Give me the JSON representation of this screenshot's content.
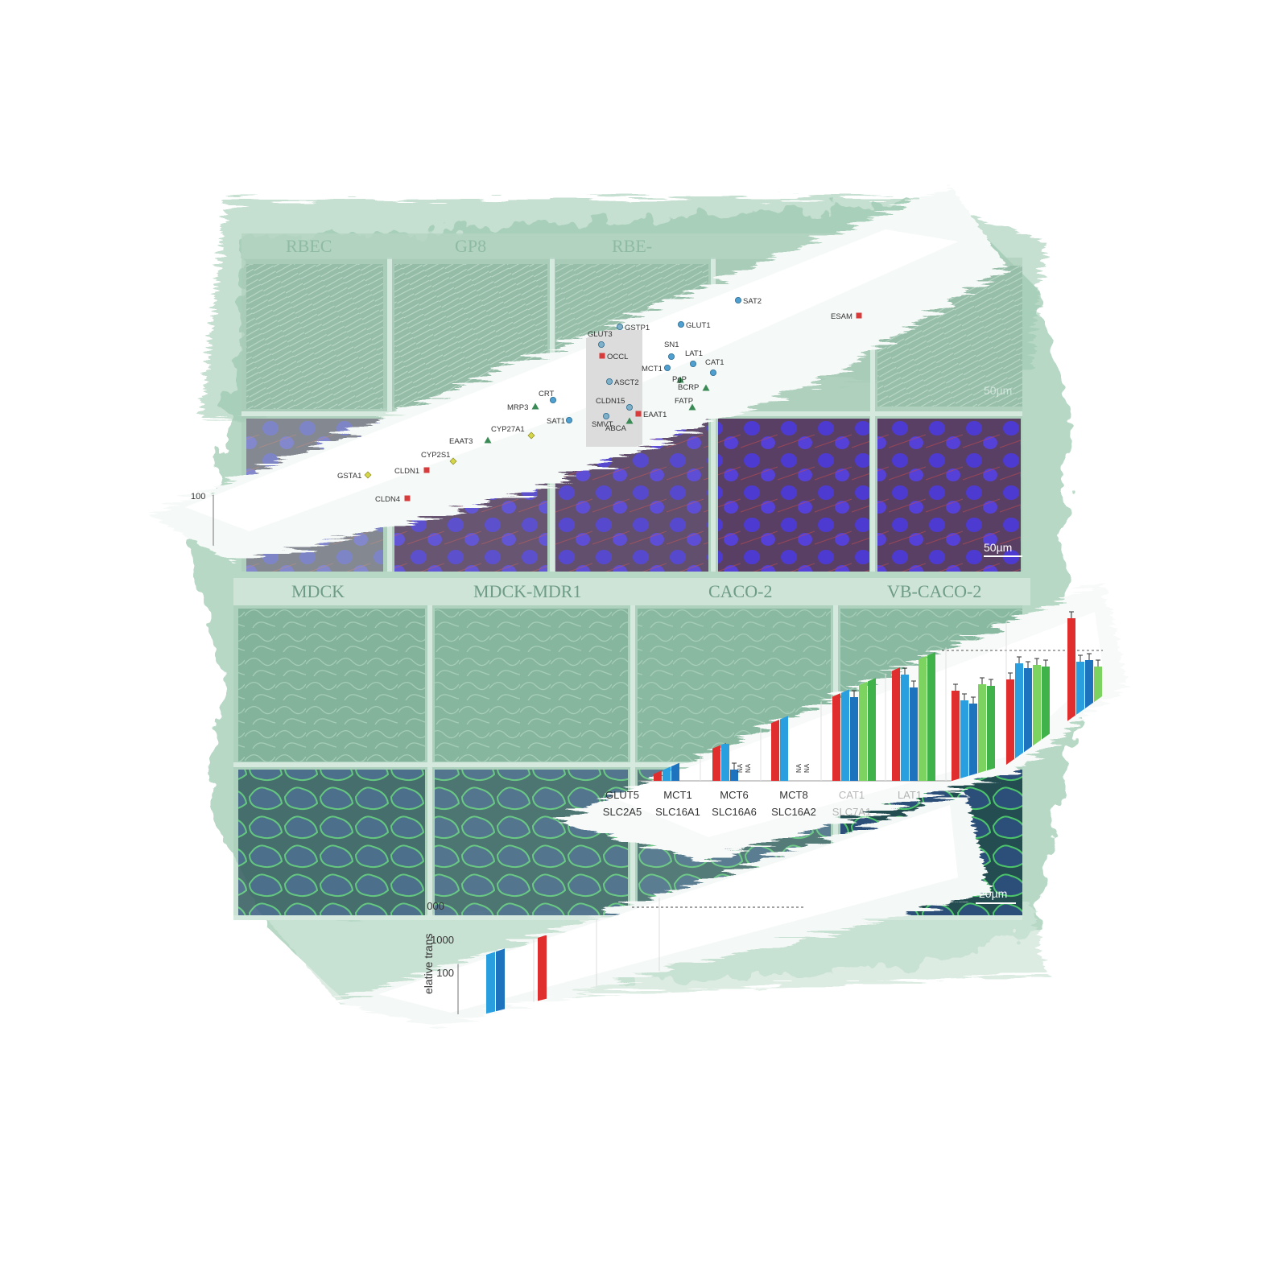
{
  "panel_titles_top": [
    "RBEC",
    "GP8",
    "RBE-"
  ],
  "panel_titles_bottom": [
    "MDCK",
    "MDCK-MDR1",
    "CACO-2",
    "VB-CACO-2"
  ],
  "scale_bars": {
    "top_right": "50µm",
    "bottom_right": "20µm",
    "top_corner": "50µm"
  },
  "scatter": {
    "y_tick": "100",
    "points": [
      {
        "label": "SAT2",
        "marker": "circle",
        "color": "#4f9fd0"
      },
      {
        "label": "GSTP1",
        "marker": "circle",
        "color": "#7fb0c8"
      },
      {
        "label": "GLUT1",
        "marker": "circle",
        "color": "#4f9fd0"
      },
      {
        "label": "GLUT3",
        "marker": "circle",
        "color": "#7fb0c8"
      },
      {
        "label": "OCCL",
        "marker": "square",
        "color": "#d63c3c"
      },
      {
        "label": "SN1",
        "marker": "circle",
        "color": "#4f9fd0"
      },
      {
        "label": "LAT1",
        "marker": "circle",
        "color": "#4f9fd0"
      },
      {
        "label": "MCT1",
        "marker": "circle",
        "color": "#4f9fd0"
      },
      {
        "label": "CAT1",
        "marker": "circle",
        "color": "#4f9fd0"
      },
      {
        "label": "PgP",
        "marker": "triangle",
        "color": "#3a8a55"
      },
      {
        "label": "BCRP",
        "marker": "triangle",
        "color": "#3a8a55"
      },
      {
        "label": "ASCT2",
        "marker": "circle",
        "color": "#7fb0c8"
      },
      {
        "label": "CRT",
        "marker": "circle",
        "color": "#4f9fd0"
      },
      {
        "label": "MRP3",
        "marker": "triangle",
        "color": "#3a8a55"
      },
      {
        "label": "CLDN15",
        "marker": "circle",
        "color": "#7fb0c8"
      },
      {
        "label": "EAAT1",
        "marker": "square",
        "color": "#d63c3c"
      },
      {
        "label": "FATP",
        "marker": "triangle",
        "color": "#3a8a55"
      },
      {
        "label": "SAT1",
        "marker": "circle",
        "color": "#4f9fd0"
      },
      {
        "label": "SMVT",
        "marker": "circle",
        "color": "#7fb0c8"
      },
      {
        "label": "ABCA",
        "marker": "triangle",
        "color": "#3a8a55"
      },
      {
        "label": "EAAT3",
        "marker": "triangle",
        "color": "#3a8a55"
      },
      {
        "label": "CYP27A1",
        "marker": "diamond",
        "color": "#d6d64a"
      },
      {
        "label": "CYP2S1",
        "marker": "diamond",
        "color": "#d6d64a"
      },
      {
        "label": "CLDN1",
        "marker": "square",
        "color": "#d63c3c"
      },
      {
        "label": "GSTA1",
        "marker": "diamond",
        "color": "#d6d64a"
      },
      {
        "label": "CLDN4",
        "marker": "square",
        "color": "#d63c3c"
      },
      {
        "label": "ESAM",
        "marker": "square",
        "color": "#d63c3c"
      }
    ]
  },
  "bar_chart": {
    "categories": [
      {
        "line1": "GLUT5",
        "line2": "SLC2A5"
      },
      {
        "line1": "MCT1",
        "line2": "SLC16A1"
      },
      {
        "line1": "MCT6",
        "line2": "SLC16A6"
      },
      {
        "line1": "MCT8",
        "line2": "SLC16A2"
      },
      {
        "line1": "CAT1",
        "line2": "SLC7A1"
      },
      {
        "line1": "LAT1",
        "line2": ""
      }
    ],
    "na_label": "NA",
    "colors": [
      "#e02d2d",
      "#2a9fe0",
      "#1e73be",
      "#7cd35f",
      "#3fb24a"
    ]
  },
  "bottom_chart": {
    "y_ticks": [
      "000",
      "1000",
      "100"
    ],
    "y_label": "elative trans"
  }
}
